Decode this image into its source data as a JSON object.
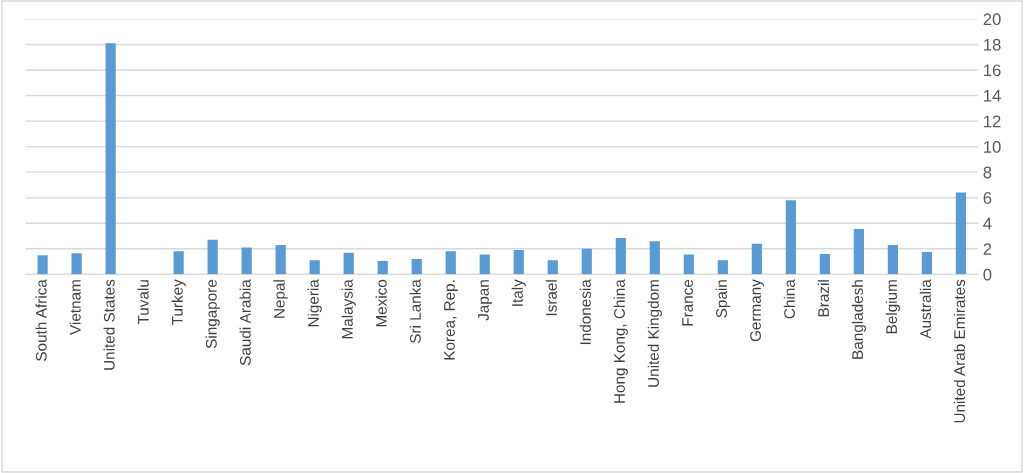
{
  "chart_data": {
    "type": "bar",
    "categories": [
      "South Africa",
      "Vietnam",
      "United States",
      "Tuvalu",
      "Turkey",
      "Singapore",
      "Saudi Arabia",
      "Nepal",
      "Nigeria",
      "Malaysia",
      "Mexico",
      "Sri Lanka",
      "Korea, Rep.",
      "Japan",
      "Italy",
      "Israel",
      "Indonesia",
      "Hong Kong, China",
      "United Kingdom",
      "France",
      "Spain",
      "Germany",
      "China",
      "Brazil",
      "Bangladesh",
      "Belgium",
      "Australia",
      "United Arab Emirates"
    ],
    "values": [
      1.5,
      1.65,
      18.1,
      0,
      1.8,
      2.7,
      2.1,
      2.3,
      1.1,
      1.7,
      1.05,
      1.2,
      1.8,
      1.55,
      1.9,
      1.1,
      2.0,
      2.85,
      2.6,
      1.55,
      1.1,
      2.4,
      5.8,
      1.6,
      3.55,
      2.3,
      1.75,
      6.4
    ],
    "color": "#5b9bd5",
    "ylim": [
      0,
      20
    ],
    "yticks": [
      0,
      2,
      4,
      6,
      8,
      10,
      12,
      14,
      16,
      18,
      20
    ],
    "grid": "y",
    "legend": false
  }
}
